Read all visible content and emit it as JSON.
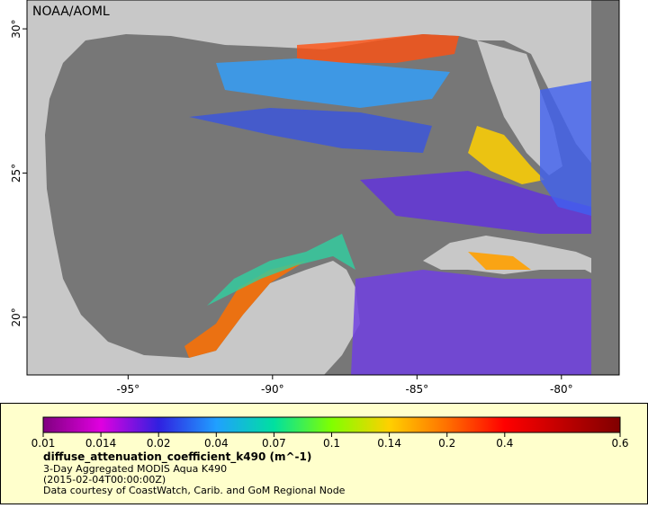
{
  "map": {
    "watermark": "NOAA/AOML",
    "xlim": [
      -98.5,
      -78
    ],
    "ylim": [
      18,
      31
    ],
    "xticks": [
      {
        "value": -95,
        "label": "-95°"
      },
      {
        "value": -90,
        "label": "-90°"
      },
      {
        "value": -85,
        "label": "-85°"
      },
      {
        "value": -80,
        "label": "-80°"
      }
    ],
    "yticks": [
      {
        "value": 20,
        "label": "20°"
      },
      {
        "value": 25,
        "label": "25°"
      },
      {
        "value": 30,
        "label": "30°"
      }
    ]
  },
  "legend": {
    "colorbar": {
      "ticks": [
        0.01,
        0.014,
        0.02,
        0.04,
        0.07,
        0.1,
        0.14,
        0.2,
        0.4,
        0.6
      ]
    },
    "title": "diffuse_attenuation_coefficient_k490 (m^-1)",
    "lines": [
      "3-Day Aggregated MODIS Aqua K490",
      "(2015-02-04T00:00:00Z)",
      "Data courtesy of CoastWatch, Carib. and GoM Regional Node"
    ]
  }
}
